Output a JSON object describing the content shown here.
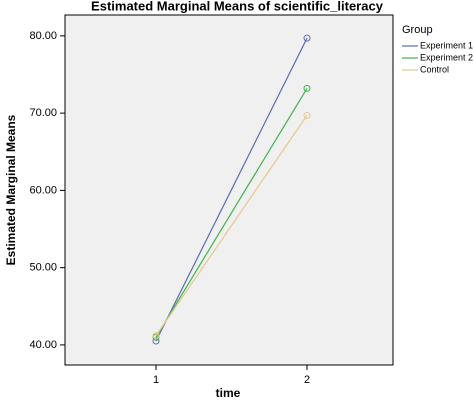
{
  "chart_data": {
    "type": "line",
    "title": "Estimated Marginal Means of scientific_literacy",
    "x_label": "time",
    "y_label": "Estimated Marginal Means",
    "legend_title": "Group",
    "legend": "right",
    "categories": [
      "1",
      "2"
    ],
    "series": [
      {
        "name": "Experiment 1",
        "color": "#5b6db3",
        "values": [
          40.5,
          79.7
        ]
      },
      {
        "name": "Experiment 2",
        "color": "#3fb44c",
        "values": [
          41.0,
          73.2
        ]
      },
      {
        "name": "Control",
        "color": "#e3c98f",
        "values": [
          41.2,
          69.7
        ]
      }
    ],
    "ylim": [
      37.4,
      82.7
    ],
    "yticks": [
      {
        "value": 40,
        "label": "40.00"
      },
      {
        "value": 50,
        "label": "50.00"
      },
      {
        "value": 60,
        "label": "60.00"
      },
      {
        "value": 70,
        "label": "70.00"
      },
      {
        "value": 80,
        "label": "80.00"
      }
    ]
  }
}
